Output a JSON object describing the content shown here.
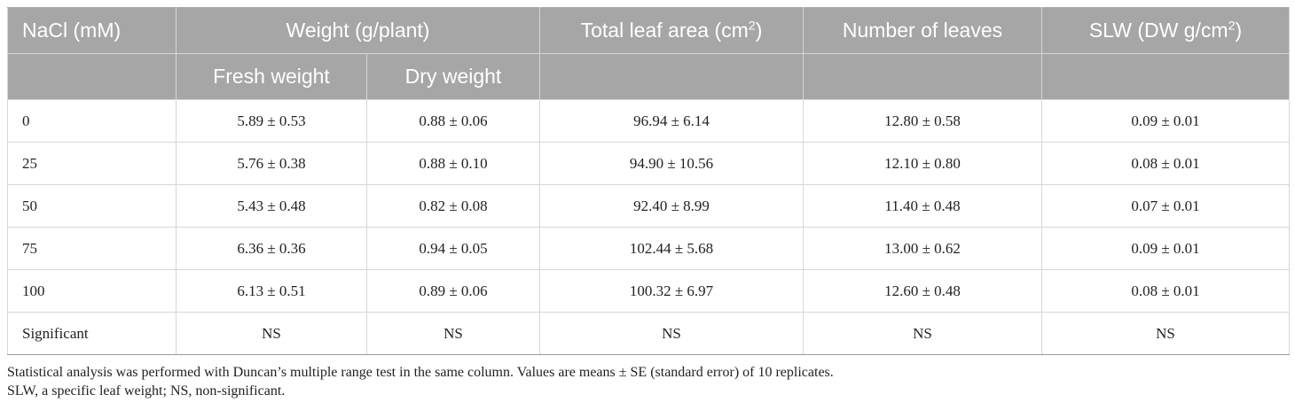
{
  "table": {
    "header_row1": {
      "col0": "NaCl (mM)",
      "weight_group": "Weight (g/plant)",
      "col3_main": "Total leaf area (cm",
      "col3_sup": "2",
      "col3_end": ")",
      "col4": "Number of leaves",
      "col5_main": "SLW (DW g/cm",
      "col5_sup": "2",
      "col5_end": ")"
    },
    "header_row2": {
      "fresh": "Fresh weight",
      "dry": "Dry weight"
    },
    "rows": [
      {
        "nacl": "0",
        "fresh": "5.89 ± 0.53",
        "dry": "0.88 ± 0.06",
        "area": "96.94 ± 6.14",
        "leaves": "12.80 ± 0.58",
        "slw": "0.09 ± 0.01"
      },
      {
        "nacl": "25",
        "fresh": "5.76 ± 0.38",
        "dry": "0.88 ± 0.10",
        "area": "94.90 ± 10.56",
        "leaves": "12.10 ± 0.80",
        "slw": "0.08 ± 0.01"
      },
      {
        "nacl": "50",
        "fresh": "5.43 ± 0.48",
        "dry": "0.82 ± 0.08",
        "area": "92.40 ± 8.99",
        "leaves": "11.40 ± 0.48",
        "slw": "0.07 ± 0.01"
      },
      {
        "nacl": "75",
        "fresh": "6.36 ± 0.36",
        "dry": "0.94 ± 0.05",
        "area": "102.44 ± 5.68",
        "leaves": "13.00 ± 0.62",
        "slw": "0.09 ± 0.01"
      },
      {
        "nacl": "100",
        "fresh": "6.13 ± 0.51",
        "dry": "0.89 ± 0.06",
        "area": "100.32 ± 6.97",
        "leaves": "12.60 ± 0.48",
        "slw": "0.08 ± 0.01"
      },
      {
        "nacl": "Significant",
        "fresh": "NS",
        "dry": "NS",
        "area": "NS",
        "leaves": "NS",
        "slw": "NS"
      }
    ]
  },
  "notes": {
    "line1": "Statistical analysis was performed with Duncan’s multiple range test in the same column. Values are means ± SE (standard error) of 10 replicates.",
    "line2": "SLW, a specific leaf weight; NS, non-significant."
  },
  "colors": {
    "header_bg": "#a6a6a6",
    "header_text": "#ffffff",
    "grid": "#d6d6d6"
  }
}
